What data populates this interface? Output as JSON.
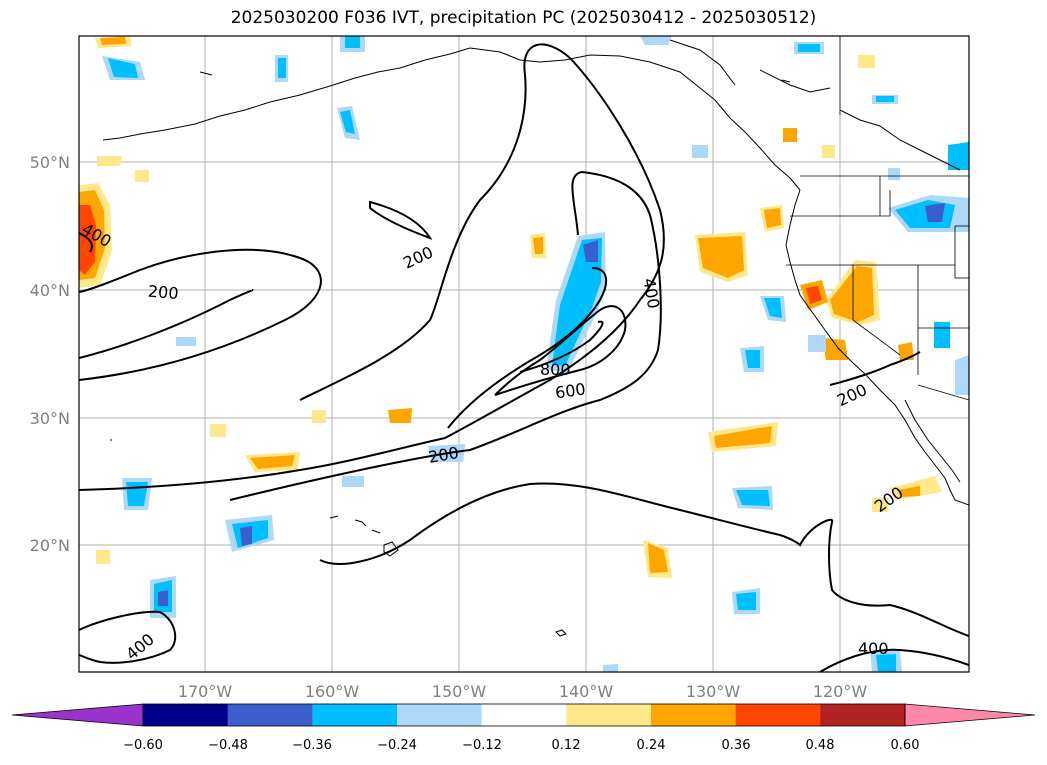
{
  "title": "2025030200 F036 IVT, precipitation PC (2025030412 - 2025030512)",
  "lat_labels": [
    "50°N",
    "40°N",
    "30°N",
    "20°N"
  ],
  "lon_labels": [
    "170°W",
    "160°W",
    "150°W",
    "140°W",
    "130°W",
    "120°W"
  ],
  "contour_labels": [
    "400",
    "200",
    "200",
    "400",
    "800",
    "600",
    "200",
    "200",
    "200",
    "400",
    "400"
  ],
  "colorbar": {
    "ticks": [
      "−0.60",
      "−0.48",
      "−0.36",
      "−0.24",
      "−0.12",
      "0.12",
      "0.24",
      "0.36",
      "0.48",
      "0.60"
    ],
    "colors": [
      "#9933cc",
      "#00008b",
      "#3a5fcd",
      "#00bfff",
      "#add8f8",
      "#ffffff",
      "#ffe88a",
      "#ffa500",
      "#ff4500",
      "#b22222",
      "#ff88aa"
    ]
  }
}
